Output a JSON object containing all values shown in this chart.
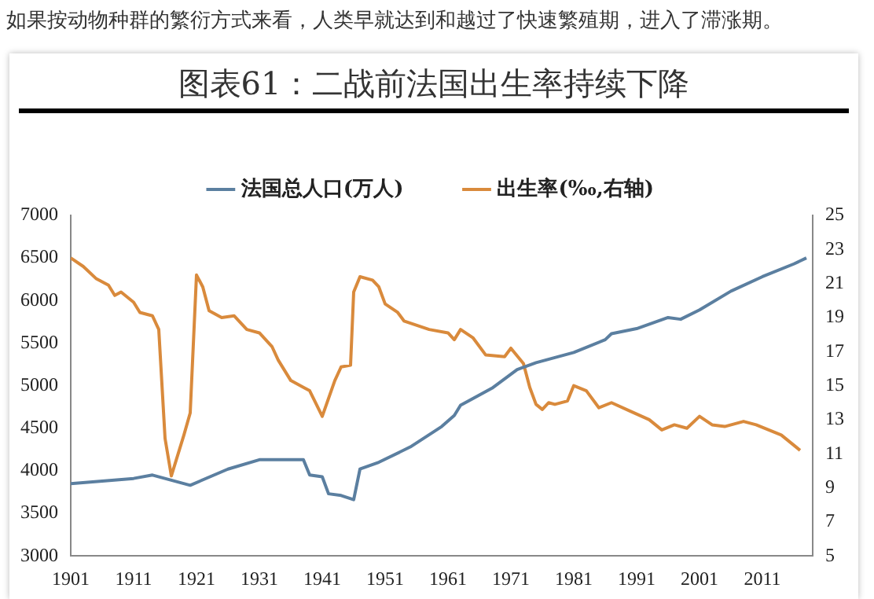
{
  "chart_data": {
    "type": "line",
    "title": "图表61：二战前法国出生率持续下降",
    "annotations": [
      "如果按动物种群的繁衍方式来看，人类早就达到和越过了快速繁殖期，进入了滞涨期。"
    ],
    "xlim": [
      1901,
      2019
    ],
    "xticks": [
      1901,
      1911,
      1921,
      1931,
      1941,
      1951,
      1961,
      1971,
      1981,
      1991,
      2001,
      2011
    ],
    "ylim": [
      3000,
      7000
    ],
    "yticks": [
      3000,
      3500,
      4000,
      4500,
      5000,
      5500,
      6000,
      6500,
      7000
    ],
    "y2lim": [
      5,
      25
    ],
    "y2ticks": [
      5,
      7,
      9,
      11,
      13,
      15,
      17,
      19,
      21,
      23,
      25
    ],
    "grid": false,
    "legend": "top",
    "marker": "none",
    "line_style": "solid",
    "series": [
      {
        "name": "法国总人口(万人)",
        "color": "#5b7fa0",
        "x": [
          1901,
          1911,
          1914,
          1920,
          1926,
          1931,
          1938,
          1939,
          1941,
          1942,
          1944,
          1946,
          1947,
          1950,
          1955,
          1960,
          1962,
          1963,
          1968,
          1972,
          1975,
          1981,
          1986,
          1987,
          1991,
          1996,
          1998,
          2001,
          2006,
          2011,
          2016,
          2018
        ],
        "values": [
          3850,
          3910,
          3950,
          3830,
          4020,
          4130,
          4130,
          3950,
          3930,
          3730,
          3710,
          3660,
          4020,
          4100,
          4280,
          4520,
          4650,
          4770,
          4970,
          5190,
          5270,
          5390,
          5540,
          5610,
          5670,
          5800,
          5780,
          5890,
          6110,
          6280,
          6430,
          6500
        ]
      },
      {
        "name": "出生率(‰,右轴)",
        "color": "#d98a3c",
        "axis": "y2",
        "x": [
          1901,
          1903,
          1905,
          1907,
          1908,
          1909,
          1911,
          1912,
          1914,
          1915,
          1916,
          1917,
          1919,
          1920,
          1921,
          1922,
          1923,
          1925,
          1927,
          1929,
          1931,
          1933,
          1934,
          1936,
          1938,
          1939,
          1941,
          1943,
          1944,
          1945.5,
          1946,
          1947,
          1949,
          1950,
          1951,
          1953,
          1954,
          1958,
          1961,
          1962,
          1963,
          1965,
          1967,
          1970,
          1971,
          1973,
          1974,
          1975,
          1976,
          1977,
          1978,
          1980,
          1981,
          1983,
          1985,
          1987,
          1990,
          1993,
          1995,
          1997,
          1999,
          2001,
          2003,
          2005,
          2008,
          2010,
          2012,
          2014,
          2016,
          2017
        ],
        "values": [
          22.5,
          22.0,
          21.3,
          20.9,
          20.3,
          20.5,
          19.9,
          19.3,
          19.1,
          18.3,
          11.9,
          9.7,
          12.1,
          13.4,
          21.5,
          20.8,
          19.4,
          19.0,
          19.1,
          18.3,
          18.1,
          17.3,
          16.5,
          15.3,
          14.9,
          14.7,
          13.2,
          15.3,
          16.1,
          16.2,
          20.5,
          21.4,
          21.2,
          20.8,
          19.8,
          19.3,
          18.8,
          18.3,
          18.1,
          17.7,
          18.3,
          17.8,
          16.8,
          16.7,
          17.2,
          16.3,
          14.9,
          13.9,
          13.6,
          14.0,
          13.9,
          14.1,
          15.0,
          14.7,
          13.7,
          14.0,
          13.5,
          13.0,
          12.4,
          12.7,
          12.5,
          13.2,
          12.7,
          12.6,
          12.9,
          12.7,
          12.4,
          12.1,
          11.5,
          11.2
        ]
      }
    ]
  }
}
